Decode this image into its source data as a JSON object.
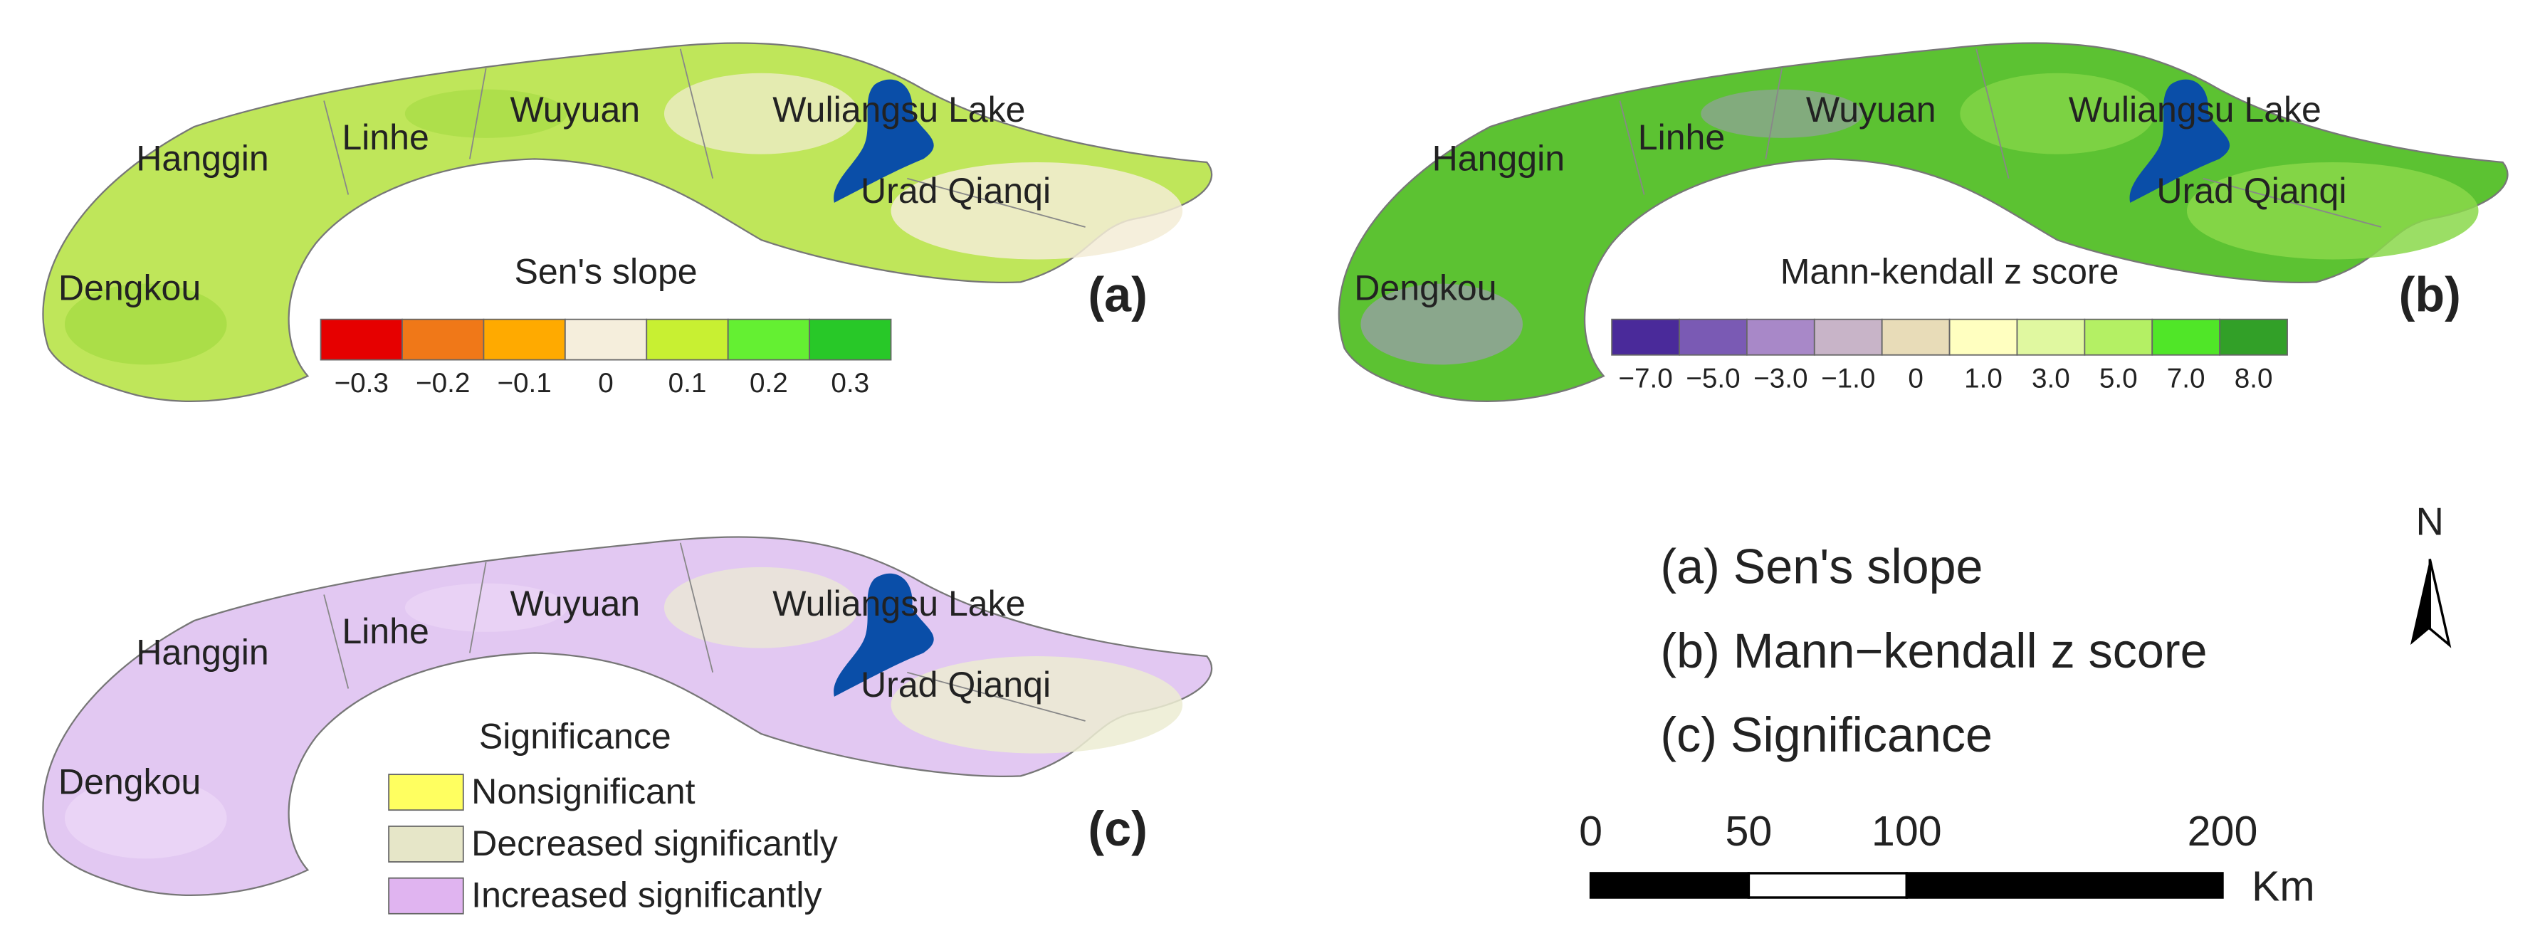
{
  "panels": [
    {
      "label": "(a)",
      "places": [
        "Hanggin",
        "Linhe",
        "Wuyuan",
        "Wuliangsu Lake",
        "Urad Qianqi",
        "Dengkou"
      ],
      "legend": {
        "title": "Sen's slope",
        "colors": [
          "#e60000",
          "#f07818",
          "#ffaa00",
          "#f5eedc",
          "#c8f032",
          "#64f032",
          "#28c828"
        ],
        "labels": [
          "−0.3",
          "−0.2",
          "−0.1",
          "0",
          "0.1",
          "0.2",
          "0.3"
        ]
      }
    },
    {
      "label": "(b)",
      "places": [
        "Hanggin",
        "Linhe",
        "Wuyuan",
        "Wuliangsu Lake",
        "Urad Qianqi",
        "Dengkou"
      ],
      "legend": {
        "title": "Mann-kendall z score",
        "colors": [
          "#4a2a9a",
          "#7a5ab4",
          "#a888c8",
          "#c8b4c8",
          "#e8dcb8",
          "#ffffc0",
          "#e0f8a0",
          "#b4f064",
          "#50e628",
          "#32a028"
        ],
        "labels": [
          "−7.0",
          "−5.0",
          "−3.0",
          "−1.0",
          "0",
          "1.0",
          "3.0",
          "5.0",
          "7.0",
          "8.0"
        ]
      }
    },
    {
      "label": "(c)",
      "places": [
        "Hanggin",
        "Linhe",
        "Wuyuan",
        "Wuliangsu Lake",
        "Urad Qianqi",
        "Dengkou"
      ],
      "legend": {
        "title": "Significance",
        "items": [
          {
            "label": "Nonsignificant",
            "color": "#ffff60"
          },
          {
            "label": "Decreased significantly",
            "color": "#e6e6c8"
          },
          {
            "label": "Increased significantly",
            "color": "#e0b4f0"
          }
        ]
      }
    }
  ],
  "key": [
    "(a) Sen's slope",
    "(b) Mann−kendall z score",
    "(c) Significance"
  ],
  "north": "N",
  "scale_bar": {
    "ticks": [
      0,
      50,
      100,
      200
    ],
    "unit": "Km"
  }
}
